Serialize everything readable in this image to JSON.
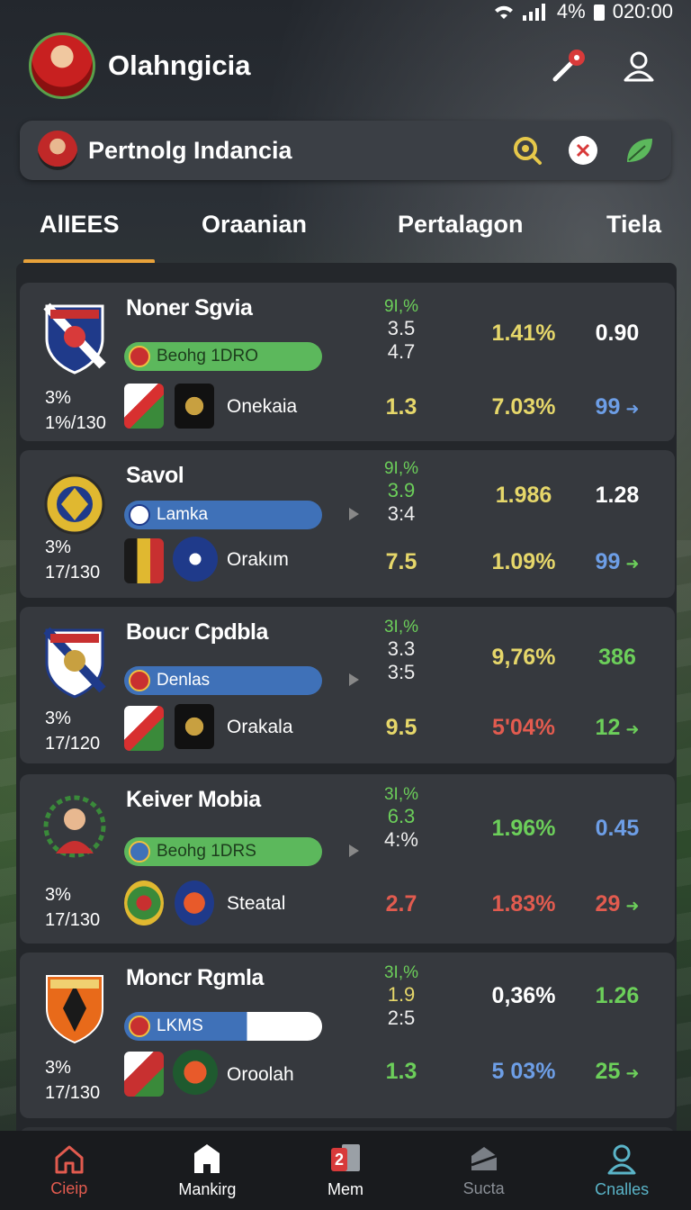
{
  "status": {
    "battery": "4%",
    "time": "020:00"
  },
  "header": {
    "title": "Olahngicia"
  },
  "search": {
    "query": "Pertnolg Indancia"
  },
  "tabs": [
    "AlIEES",
    "Oraanian",
    "Pertalagon",
    "Tiela"
  ],
  "cards": [
    {
      "name": "Noner Sgvia",
      "pct": "3%",
      "record": "1%/130",
      "pill": "Beohg 1DRO",
      "opponent": "Onekaia",
      "stat_a": "9I,%",
      "stat_b": "3.5",
      "stat_c": "4.7",
      "v1": "1.3",
      "v2": "1.41%",
      "v3": "7.03%",
      "v4": "0.90",
      "v5": "99"
    },
    {
      "name": "Savol",
      "pct": "3%",
      "record": "17/130",
      "pill": "Lamka",
      "opponent": "Orakım",
      "stat_a": "9I,%",
      "stat_b": "3.9",
      "stat_c": "3:4",
      "v1": "7.5",
      "v2": "1.986",
      "v3": "1.09%",
      "v4": "1.28",
      "v5": "99"
    },
    {
      "name": "Boucr Cpdbla",
      "pct": "3%",
      "record": "17/120",
      "pill": "Denlas",
      "opponent": "Orakala",
      "stat_a": "3I,%",
      "stat_b": "3.3",
      "stat_c": "3:5",
      "v1": "9.5",
      "v2": "9,76%",
      "v3": "5'04%",
      "v4": "386",
      "v5": "12"
    },
    {
      "name": "Keiver Mobia",
      "pct": "3%",
      "record": "17/130",
      "pill": "Beohg 1DRS",
      "opponent": "Steatal",
      "stat_a": "3I,%",
      "stat_b": "6.3",
      "stat_c": "4:%",
      "v1": "2.7",
      "v2": "1.96%",
      "v3": "1.83%",
      "v4": "0.45",
      "v5": "29"
    },
    {
      "name": "Moncr Rgmla",
      "pct": "3%",
      "record": "17/130",
      "pill": "LKMS",
      "opponent": "Oroolah",
      "stat_a": "3I,%",
      "stat_b": "1.9",
      "stat_c": "2:5",
      "v1": "1.3",
      "v2": "0,36%",
      "v3": "5 03%",
      "v4": "1.26",
      "v5": "25"
    }
  ],
  "nav": [
    "Cieip",
    "Mankirg",
    "Mem",
    "Sucta",
    "Cnalles"
  ],
  "nav_badge": "2",
  "colors": {
    "accent": "#e8a23a",
    "green": "#6ccf5a",
    "yellow": "#e6d76a",
    "red": "#e25b4f",
    "blue": "#6d9ee6"
  }
}
